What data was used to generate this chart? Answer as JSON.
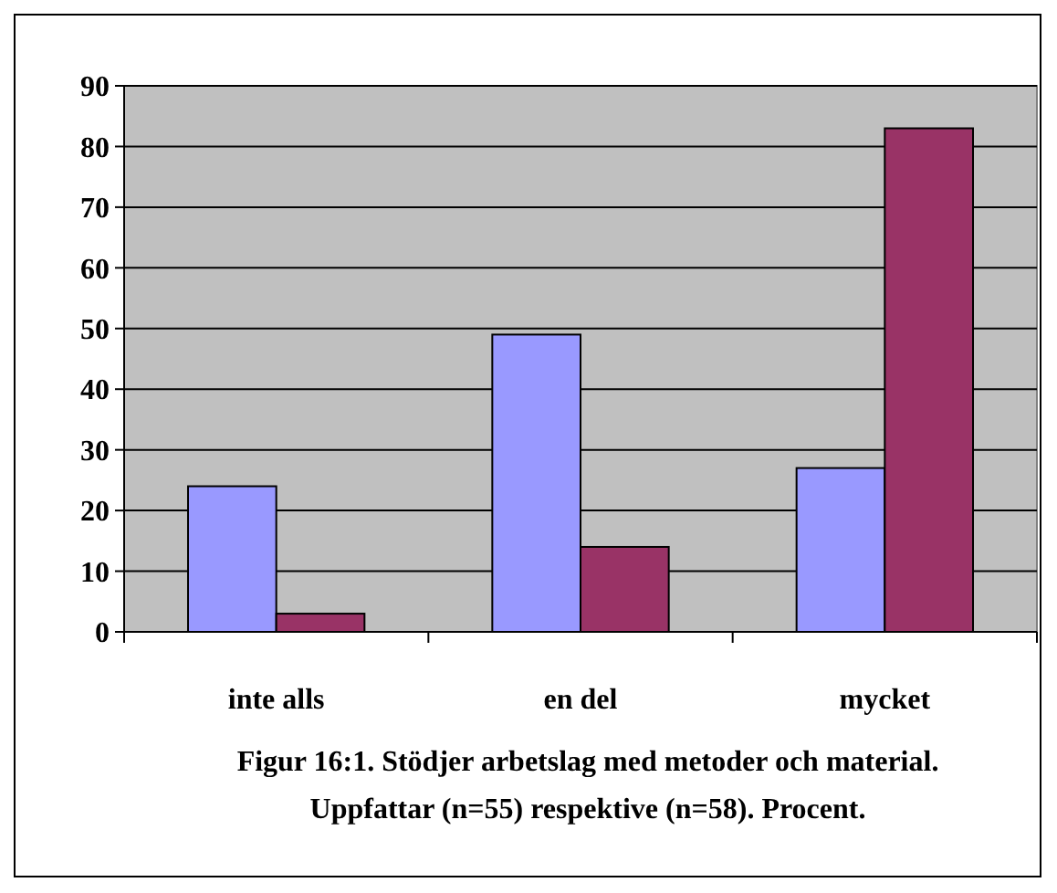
{
  "chart_data": {
    "type": "bar",
    "title": "Figur 16:1. Stödjer arbetslag med metoder och material.",
    "subtitle": "Uppfattar (n=55) respektive (n=58). Procent.",
    "categories": [
      "inte alls",
      "en del",
      "mycket"
    ],
    "series": [
      {
        "color": "#9999ff",
        "values": [
          24,
          49,
          27
        ]
      },
      {
        "color": "#993366",
        "values": [
          3,
          14,
          83
        ]
      }
    ],
    "ylim": [
      0,
      90
    ],
    "yticks": [
      0,
      10,
      20,
      30,
      40,
      50,
      60,
      70,
      80,
      90
    ],
    "grid": "y"
  }
}
